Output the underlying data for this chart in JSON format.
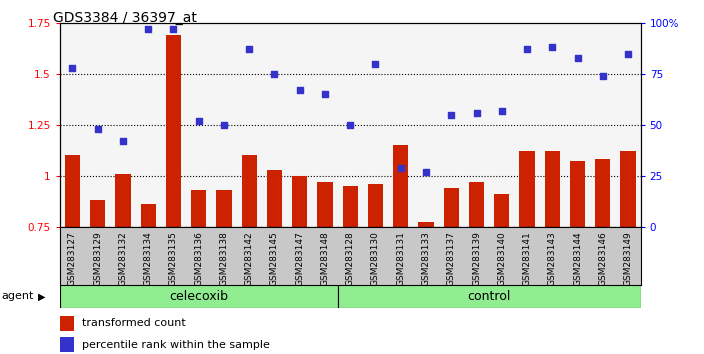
{
  "title": "GDS3384 / 36397_at",
  "samples": [
    "GSM283127",
    "GSM283129",
    "GSM283132",
    "GSM283134",
    "GSM283135",
    "GSM283136",
    "GSM283138",
    "GSM283142",
    "GSM283145",
    "GSM283147",
    "GSM283148",
    "GSM283128",
    "GSM283130",
    "GSM283131",
    "GSM283133",
    "GSM283137",
    "GSM283139",
    "GSM283140",
    "GSM283141",
    "GSM283143",
    "GSM283144",
    "GSM283146",
    "GSM283149"
  ],
  "bar_values": [
    1.1,
    0.88,
    1.01,
    0.86,
    1.69,
    0.93,
    0.93,
    1.1,
    1.03,
    1.0,
    0.97,
    0.95,
    0.96,
    1.15,
    0.77,
    0.94,
    0.97,
    0.91,
    1.12,
    1.12,
    1.07,
    1.08,
    1.12
  ],
  "scatter_values": [
    78,
    48,
    42,
    97,
    97,
    52,
    50,
    87,
    75,
    67,
    65,
    50,
    80,
    29,
    27,
    55,
    56,
    57,
    87,
    88,
    83,
    74,
    85
  ],
  "celecoxib_count": 11,
  "control_count": 12,
  "bar_color": "#cc2200",
  "scatter_color": "#3333cc",
  "ylim_left": [
    0.75,
    1.75
  ],
  "ylim_right": [
    0,
    100
  ],
  "yticks_left": [
    0.75,
    1.0,
    1.25,
    1.5,
    1.75
  ],
  "ytick_labels_left": [
    "0.75",
    "1",
    "1.25",
    "1.5",
    "1.75"
  ],
  "yticks_right": [
    0,
    25,
    50,
    75,
    100
  ],
  "ytick_labels_right": [
    "0",
    "25",
    "50",
    "75",
    "100%"
  ],
  "hlines": [
    1.0,
    1.25,
    1.5
  ],
  "agent_label": "agent",
  "celecoxib_label": "celecoxib",
  "control_label": "control",
  "legend_bar": "transformed count",
  "legend_scatter": "percentile rank within the sample",
  "plot_bg": "#f5f5f5",
  "agent_bg": "#90ee90",
  "xticklabel_bg": "#c8c8c8",
  "fig_bg": "#ffffff"
}
